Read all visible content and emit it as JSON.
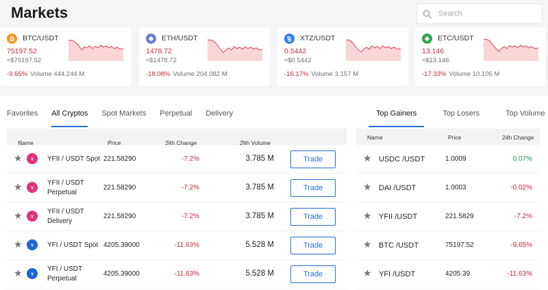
{
  "title": "Markets",
  "search": {
    "placeholder": "Search"
  },
  "colors": {
    "accent": "#1e6fd9",
    "negative": "#c0293a",
    "positive": "#1f9b5a"
  },
  "cards": [
    {
      "pair": "BTC/USDT",
      "price": "75197.52",
      "approx": "≈$75197.52",
      "change": "-9.65%",
      "volume": "Volume 444.244 M",
      "icon": "bitcoin-icon",
      "icon_color": "#f7931a",
      "glyph": "₿"
    },
    {
      "pair": "ETH/USDT",
      "price": "1478.72",
      "approx": "≈$1478.72",
      "change": "-18.08%",
      "volume": "Volume 204.082 M",
      "icon": "ethereum-icon",
      "icon_color": "#6c7bd6",
      "glyph": "◆"
    },
    {
      "pair": "XTZ/USDT",
      "price": "0.5442",
      "approx": "≈$0.5442",
      "change": "-16.17%",
      "volume": "Volume 3.157 M",
      "icon": "tezos-icon",
      "icon_color": "#2c7df7",
      "glyph": "ꜩ"
    },
    {
      "pair": "ETC/USDT",
      "price": "13.146",
      "approx": "≈$13.146",
      "change": "-17.33%",
      "volume": "Volume 10.105 M",
      "icon": "ethereum-classic-icon",
      "icon_color": "#2fa84f",
      "glyph": "◆"
    }
  ],
  "tabs_left": [
    "Favorites",
    "All Cryptos",
    "Spot Markets",
    "Perpetual",
    "Delivery"
  ],
  "tabs_right": [
    "Top Gainers",
    "Top Losers",
    "Top Volume"
  ],
  "main_table": {
    "headers": {
      "name": "Name",
      "price": "Price",
      "change": "24h Change",
      "volume": "24h Volume"
    },
    "trade_label": "Trade",
    "rows": [
      {
        "name": "YFII / USDT Spot",
        "price": "221.58290",
        "change": "-7.2%",
        "volume": "3.785 M",
        "icon": "yfii-icon"
      },
      {
        "name": "YFII / USDT Perpetual",
        "price": "221.58290",
        "change": "-7.2%",
        "volume": "3.785 M",
        "icon": "yfii-icon"
      },
      {
        "name": "YFII / USDT Delivery",
        "price": "221.58290",
        "change": "-7.2%",
        "volume": "3.785 M",
        "icon": "yfii-icon"
      },
      {
        "name": "YFI / USDT Spot",
        "price": "4205.39000",
        "change": "-11.63%",
        "volume": "5.528 M",
        "icon": "yfi-icon"
      },
      {
        "name": "YFI / USDT Perpetual",
        "price": "4205.39000",
        "change": "-11.63%",
        "volume": "5.528 M",
        "icon": "yfi-icon"
      }
    ]
  },
  "gainers_table": {
    "headers": {
      "name": "Name",
      "price": "Price",
      "change": "24h Change"
    },
    "rows": [
      {
        "name": "USDC /USDT",
        "price": "1.0009",
        "change": "0.07%"
      },
      {
        "name": "DAI /USDT",
        "price": "1.0003",
        "change": "-0.02%"
      },
      {
        "name": "YFII /USDT",
        "price": "221.5829",
        "change": "-7.2%"
      },
      {
        "name": "BTC /USDT",
        "price": "75197.52",
        "change": "-9.65%"
      },
      {
        "name": "YFI /USDT",
        "price": "4205.39",
        "change": "-11.63%"
      }
    ]
  }
}
